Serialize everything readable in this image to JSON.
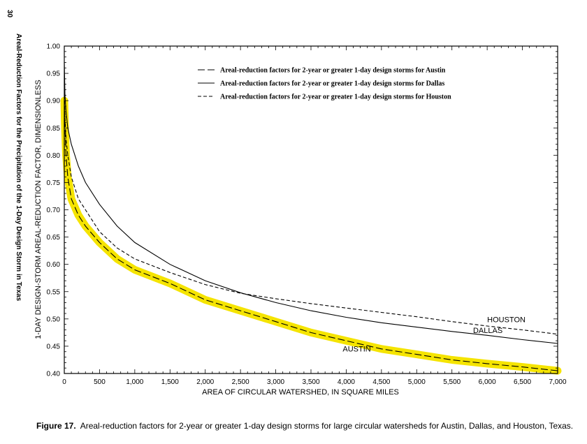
{
  "page": {
    "page_number": "30",
    "running_head": "Areal-Reduction Factors for the Precipitation of the 1-Day Design Storm in Texas",
    "caption_label": "Figure 17.",
    "caption_text": "Areal-reduction factors for 2-year or greater 1-day design storms for large circular watersheds for Austin, Dallas, and Houston, Texas."
  },
  "chart_data": {
    "type": "line",
    "title": "",
    "xlabel": "AREA OF CIRCULAR WATERSHED, IN SQUARE MILES",
    "ylabel": "1-DAY DESIGN-STORM AREAL-REDUCTION FACTOR, DIMENSIONLESS",
    "xlim": [
      0,
      7000
    ],
    "ylim": [
      0.4,
      1.0
    ],
    "x_ticks": [
      0,
      500,
      1000,
      1500,
      2000,
      2500,
      3000,
      3500,
      4000,
      4500,
      5000,
      5500,
      6000,
      6500,
      7000
    ],
    "x_tick_labels": [
      "0",
      "500",
      "1,000",
      "1,500",
      "2,000",
      "2,500",
      "3,000",
      "3,500",
      "4,000",
      "4,500",
      "5,000",
      "5,500",
      "6,000",
      "6,500",
      "7,000"
    ],
    "x_minor_step": 100,
    "y_ticks": [
      0.4,
      0.45,
      0.5,
      0.55,
      0.6,
      0.65,
      0.7,
      0.75,
      0.8,
      0.85,
      0.9,
      0.95,
      1.0
    ],
    "y_tick_labels": [
      "0.40",
      "0.45",
      "0.50",
      "0.55",
      "0.60",
      "0.65",
      "0.70",
      "0.75",
      "0.80",
      "0.85",
      "0.90",
      "0.95",
      "1.00"
    ],
    "y_minor_step": 0.01,
    "grid": false,
    "legend_position": "top",
    "highlight": {
      "series": "Austin",
      "color": "#f5e400"
    },
    "series": [
      {
        "name": "Areal-reduction factors for 2-year or greater 1-day design storms for Austin",
        "curve_label": "AUSTIN",
        "dash": "long-dash",
        "color": "#000000",
        "x": [
          0,
          10,
          25,
          50,
          100,
          200,
          300,
          500,
          750,
          1000,
          1500,
          2000,
          2500,
          3000,
          3500,
          4000,
          4500,
          5000,
          5500,
          6000,
          6500,
          7000
        ],
        "y": [
          0.9,
          0.85,
          0.8,
          0.76,
          0.72,
          0.69,
          0.67,
          0.64,
          0.61,
          0.59,
          0.565,
          0.535,
          0.515,
          0.495,
          0.475,
          0.46,
          0.445,
          0.435,
          0.425,
          0.418,
          0.412,
          0.405
        ]
      },
      {
        "name": "Areal-reduction factors for 2-year or greater 1-day design storms for Dallas",
        "curve_label": "DALLAS",
        "dash": "solid",
        "color": "#000000",
        "x": [
          0,
          10,
          25,
          50,
          100,
          200,
          300,
          500,
          750,
          1000,
          1500,
          2000,
          2500,
          3000,
          3500,
          4000,
          4500,
          5000,
          5500,
          6000,
          6500,
          7000
        ],
        "y": [
          0.97,
          0.91,
          0.88,
          0.85,
          0.82,
          0.78,
          0.75,
          0.71,
          0.67,
          0.64,
          0.6,
          0.57,
          0.548,
          0.53,
          0.515,
          0.503,
          0.493,
          0.485,
          0.477,
          0.47,
          0.462,
          0.455
        ]
      },
      {
        "name": "Areal-reduction factors for 2-year or greater 1-day design storms for Houston",
        "curve_label": "HOUSTON",
        "dash": "short-dash",
        "color": "#000000",
        "x": [
          0,
          10,
          25,
          50,
          100,
          200,
          300,
          500,
          750,
          1000,
          1500,
          2000,
          2500,
          3000,
          3500,
          4000,
          4500,
          5000,
          5500,
          6000,
          6500,
          7000
        ],
        "y": [
          0.93,
          0.87,
          0.83,
          0.8,
          0.76,
          0.72,
          0.7,
          0.66,
          0.63,
          0.61,
          0.585,
          0.563,
          0.547,
          0.537,
          0.528,
          0.52,
          0.512,
          0.504,
          0.495,
          0.487,
          0.48,
          0.472
        ]
      }
    ]
  }
}
